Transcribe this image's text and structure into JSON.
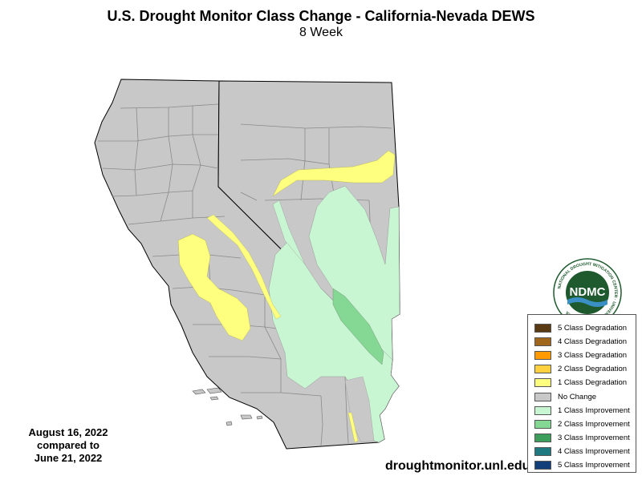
{
  "header": {
    "title": "U.S. Drought Monitor Class Change - California-Nevada DEWS",
    "subtitle": "8 Week"
  },
  "dates": {
    "line1": "August 16, 2022",
    "line2": "compared to",
    "line3": "June 21, 2022"
  },
  "source_url": "droughtmonitor.unl.edu",
  "logo": {
    "text": "NDMC",
    "ring_text": "NATIONAL DROUGHT MITIGATION CENTER · UNIVERSITY OF NEBRASKA"
  },
  "legend": [
    {
      "label": "5 Class Degradation",
      "color": "#5a3a12"
    },
    {
      "label": "4 Class Degradation",
      "color": "#a0661c"
    },
    {
      "label": "3 Class Degradation",
      "color": "#ff9a00"
    },
    {
      "label": "2 Class Degradation",
      "color": "#ffd040"
    },
    {
      "label": "1 Class Degradation",
      "color": "#ffff7f"
    },
    {
      "label": "No Change",
      "color": "#c8c8c8"
    },
    {
      "label": "1 Class Improvement",
      "color": "#c8f5d2"
    },
    {
      "label": "2 Class Improvement",
      "color": "#84d894"
    },
    {
      "label": "3 Class Improvement",
      "color": "#3c9e5a"
    },
    {
      "label": "4 Class Improvement",
      "color": "#1e7a80"
    },
    {
      "label": "5 Class Improvement",
      "color": "#123e7a"
    }
  ],
  "colors": {
    "no_change": "#c8c8c8",
    "degradation_1": "#ffff7f",
    "improvement_1": "#c8f5d2",
    "improvement_2": "#84d894",
    "county_border": "#8a8a8a",
    "state_border": "#000000"
  }
}
